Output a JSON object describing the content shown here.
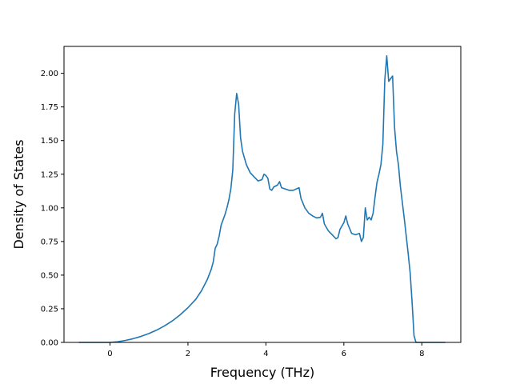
{
  "chart_data": {
    "type": "line",
    "title": "",
    "xlabel": "Frequency (THz)",
    "ylabel": "Density of States",
    "xlim": [
      -1.18,
      9.0
    ],
    "ylim": [
      0,
      2.2
    ],
    "xticks": [
      0,
      2,
      4,
      6,
      8
    ],
    "xtick_labels": [
      "0",
      "2",
      "4",
      "6",
      "8"
    ],
    "yticks": [
      0,
      0.25,
      0.5,
      0.75,
      1.0,
      1.25,
      1.5,
      1.75,
      2.0
    ],
    "ytick_labels": [
      "0.00",
      "0.25",
      "0.50",
      "0.75",
      "1.00",
      "1.25",
      "1.50",
      "1.75",
      "2.00"
    ],
    "grid": false,
    "series": [
      {
        "color": "#1f77b4",
        "points": [
          [
            -0.8,
            0.0
          ],
          [
            0.0,
            0.0
          ],
          [
            0.2,
            0.005
          ],
          [
            0.4,
            0.015
          ],
          [
            0.6,
            0.028
          ],
          [
            0.8,
            0.045
          ],
          [
            1.0,
            0.066
          ],
          [
            1.2,
            0.092
          ],
          [
            1.4,
            0.123
          ],
          [
            1.6,
            0.16
          ],
          [
            1.8,
            0.205
          ],
          [
            2.0,
            0.258
          ],
          [
            2.2,
            0.32
          ],
          [
            2.35,
            0.385
          ],
          [
            2.5,
            0.47
          ],
          [
            2.6,
            0.545
          ],
          [
            2.65,
            0.6
          ],
          [
            2.7,
            0.7
          ],
          [
            2.75,
            0.73
          ],
          [
            2.8,
            0.79
          ],
          [
            2.85,
            0.87
          ],
          [
            2.9,
            0.91
          ],
          [
            2.95,
            0.95
          ],
          [
            3.0,
            1.0
          ],
          [
            3.05,
            1.06
          ],
          [
            3.1,
            1.14
          ],
          [
            3.15,
            1.28
          ],
          [
            3.2,
            1.7
          ],
          [
            3.25,
            1.85
          ],
          [
            3.3,
            1.77
          ],
          [
            3.35,
            1.52
          ],
          [
            3.4,
            1.42
          ],
          [
            3.45,
            1.37
          ],
          [
            3.5,
            1.32
          ],
          [
            3.6,
            1.26
          ],
          [
            3.7,
            1.23
          ],
          [
            3.8,
            1.2
          ],
          [
            3.9,
            1.21
          ],
          [
            3.95,
            1.25
          ],
          [
            4.0,
            1.24
          ],
          [
            4.05,
            1.22
          ],
          [
            4.1,
            1.14
          ],
          [
            4.15,
            1.13
          ],
          [
            4.2,
            1.155
          ],
          [
            4.3,
            1.17
          ],
          [
            4.35,
            1.195
          ],
          [
            4.4,
            1.15
          ],
          [
            4.5,
            1.14
          ],
          [
            4.6,
            1.13
          ],
          [
            4.7,
            1.13
          ],
          [
            4.85,
            1.15
          ],
          [
            4.9,
            1.07
          ],
          [
            5.0,
            1.0
          ],
          [
            5.1,
            0.96
          ],
          [
            5.2,
            0.94
          ],
          [
            5.3,
            0.925
          ],
          [
            5.4,
            0.93
          ],
          [
            5.45,
            0.96
          ],
          [
            5.5,
            0.88
          ],
          [
            5.6,
            0.83
          ],
          [
            5.7,
            0.8
          ],
          [
            5.8,
            0.77
          ],
          [
            5.85,
            0.78
          ],
          [
            5.9,
            0.84
          ],
          [
            6.0,
            0.89
          ],
          [
            6.05,
            0.94
          ],
          [
            6.1,
            0.88
          ],
          [
            6.2,
            0.81
          ],
          [
            6.3,
            0.8
          ],
          [
            6.4,
            0.81
          ],
          [
            6.45,
            0.75
          ],
          [
            6.5,
            0.78
          ],
          [
            6.55,
            1.0
          ],
          [
            6.6,
            0.91
          ],
          [
            6.65,
            0.93
          ],
          [
            6.7,
            0.91
          ],
          [
            6.75,
            0.96
          ],
          [
            6.8,
            1.08
          ],
          [
            6.85,
            1.19
          ],
          [
            6.9,
            1.25
          ],
          [
            6.95,
            1.32
          ],
          [
            7.0,
            1.47
          ],
          [
            7.05,
            1.95
          ],
          [
            7.1,
            2.13
          ],
          [
            7.15,
            1.94
          ],
          [
            7.25,
            1.98
          ],
          [
            7.3,
            1.6
          ],
          [
            7.35,
            1.42
          ],
          [
            7.4,
            1.32
          ],
          [
            7.45,
            1.16
          ],
          [
            7.5,
            1.04
          ],
          [
            7.55,
            0.92
          ],
          [
            7.6,
            0.79
          ],
          [
            7.65,
            0.66
          ],
          [
            7.7,
            0.52
          ],
          [
            7.75,
            0.3
          ],
          [
            7.8,
            0.05
          ],
          [
            7.85,
            0.0
          ],
          [
            8.6,
            0.0
          ]
        ]
      }
    ]
  }
}
